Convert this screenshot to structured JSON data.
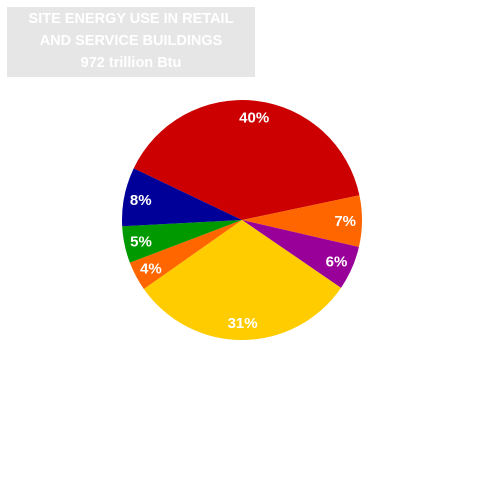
{
  "chart_data": {
    "type": "pie",
    "title_lines": [
      "SITE ENERGY USE IN RETAIL",
      "AND SERVICE BUILDINGS",
      "972 trillion Btu"
    ],
    "slices": [
      {
        "label": "40%",
        "value": 40,
        "color": "#cc0000"
      },
      {
        "label": "7%",
        "value": 7,
        "color": "#ff6600"
      },
      {
        "label": "6%",
        "value": 6,
        "color": "#990099"
      },
      {
        "label": "31%",
        "value": 31,
        "color": "#ffcc00"
      },
      {
        "label": "4%",
        "value": 4,
        "color": "#ff6600"
      },
      {
        "label": "5%",
        "value": 5,
        "color": "#009900"
      },
      {
        "label": "8%",
        "value": 8,
        "color": "#000099"
      }
    ]
  }
}
